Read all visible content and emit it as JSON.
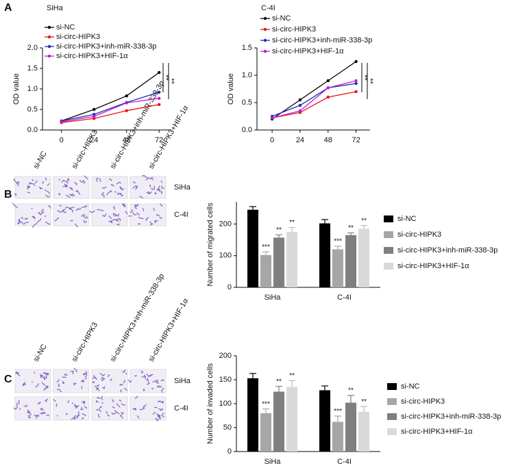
{
  "panels": [
    "A",
    "B",
    "C"
  ],
  "micrographs": [
    {
      "columns": [
        "si-NC",
        "si-circ-HIPK3",
        "si-circ-HIPK3+inh-miR-338-3p",
        "si-circ-HIPK3+HIF-1α"
      ],
      "rows": [
        "SiHa",
        "C-4I"
      ]
    },
    {
      "columns": [
        "si-NC",
        "si-circ-HIPK3",
        "si-circ-HIPK3+inh-miR-338-3p",
        "si-circ-HIPK3+HIF-1α"
      ],
      "rows": [
        "SiHa",
        "C-4I"
      ]
    }
  ],
  "chart_data": [
    {
      "type": "line",
      "title": "SiHa",
      "ylabel": "OD value",
      "x": [
        0,
        24,
        48,
        72
      ],
      "xticks": [
        0,
        24,
        48,
        72
      ],
      "xlim": [
        -14,
        81
      ],
      "ylim": [
        0,
        2
      ],
      "yticks": [
        {
          "value": 0,
          "label": "0.0"
        },
        0.5,
        {
          "value": 1,
          "label": "1.0"
        },
        1.5,
        {
          "value": 2,
          "label": "2.0"
        }
      ],
      "legend": "top",
      "annotations": [
        "**",
        "**"
      ],
      "series": [
        {
          "name": "si-NC",
          "color": "#000000",
          "values": [
            0.22,
            0.5,
            0.83,
            1.4
          ]
        },
        {
          "name": "si-circ-HIPK3",
          "color": "#e8121a",
          "values": [
            0.18,
            0.28,
            0.47,
            0.62
          ]
        },
        {
          "name": "si-circ-HIPK3+inh-miR-338-3p",
          "color": "#1a2bb8",
          "values": [
            0.22,
            0.38,
            0.67,
            0.92
          ]
        },
        {
          "name": "si-circ-HIPK3+HIF-1α",
          "color": "#c21ad6",
          "values": [
            0.2,
            0.33,
            0.66,
            0.77
          ]
        }
      ]
    },
    {
      "type": "line",
      "title": "C-4I",
      "ylabel": "OD value",
      "x": [
        0,
        24,
        48,
        72
      ],
      "xticks": [
        0,
        24,
        48,
        72
      ],
      "xlim": [
        -13,
        84
      ],
      "ylim": [
        0,
        1.5
      ],
      "yticks": [
        {
          "value": 0,
          "label": "0.0"
        },
        0.5,
        {
          "value": 1,
          "label": "1.0"
        },
        1.5
      ],
      "legend": "top",
      "annotations": [
        "**",
        "**"
      ],
      "series": [
        {
          "name": "si-NC",
          "color": "#000000",
          "values": [
            0.2,
            0.55,
            0.9,
            1.25
          ]
        },
        {
          "name": "si-circ-HIPK3",
          "color": "#e8121a",
          "values": [
            0.22,
            0.32,
            0.6,
            0.7
          ]
        },
        {
          "name": "si-circ-HIPK3+inh-miR-338-3p",
          "color": "#1a2bb8",
          "values": [
            0.25,
            0.45,
            0.77,
            0.85
          ]
        },
        {
          "name": "si-circ-HIPK3+HIF-1α",
          "color": "#c21ad6",
          "values": [
            0.22,
            0.35,
            0.77,
            0.9
          ]
        }
      ]
    },
    {
      "type": "bar",
      "ylabel": "Number of migrated cells",
      "categories": [
        "SiHa",
        "C-4I"
      ],
      "ylim": [
        0,
        270
      ],
      "yticks": [
        0,
        100,
        200
      ],
      "legend": "right",
      "series": [
        {
          "name": "si-NC",
          "color": "#000000",
          "values": [
            245,
            202
          ],
          "errors": [
            10,
            12
          ]
        },
        {
          "name": "si-circ-HIPK3",
          "color": "#a6a6a6",
          "values": [
            102,
            120
          ],
          "errors": [
            10,
            10
          ],
          "labels": [
            "***",
            "***"
          ]
        },
        {
          "name": "si-circ-HIPK3+inh-miR-338-3p",
          "color": "#7f7f7f",
          "values": [
            157,
            165
          ],
          "errors": [
            9,
            7
          ],
          "labels": [
            "**",
            "**"
          ]
        },
        {
          "name": "si-circ-HIPK3+HIF-1α",
          "color": "#d9d9d9",
          "values": [
            175,
            185
          ],
          "errors": [
            14,
            10
          ],
          "labels": [
            "**",
            "**"
          ]
        }
      ]
    },
    {
      "type": "bar",
      "ylabel": "Number of invaded cells",
      "categories": [
        "SiHa",
        "C-4I"
      ],
      "ylim": [
        0,
        200
      ],
      "yticks": [
        0,
        50,
        100,
        150,
        200
      ],
      "legend": "right",
      "series": [
        {
          "name": "si-NC",
          "color": "#000000",
          "values": [
            153,
            128
          ],
          "errors": [
            10,
            9
          ]
        },
        {
          "name": "si-circ-HIPK3",
          "color": "#a6a6a6",
          "values": [
            80,
            62
          ],
          "errors": [
            9,
            12
          ],
          "labels": [
            "***",
            "***"
          ]
        },
        {
          "name": "si-circ-HIPK3+inh-miR-338-3p",
          "color": "#7f7f7f",
          "values": [
            125,
            102
          ],
          "errors": [
            11,
            15
          ],
          "labels": [
            "**",
            "**"
          ]
        },
        {
          "name": "si-circ-HIPK3+HIF-1α",
          "color": "#d9d9d9",
          "values": [
            135,
            83
          ],
          "errors": [
            13,
            11
          ],
          "labels": [
            "**",
            "**"
          ]
        }
      ]
    }
  ]
}
